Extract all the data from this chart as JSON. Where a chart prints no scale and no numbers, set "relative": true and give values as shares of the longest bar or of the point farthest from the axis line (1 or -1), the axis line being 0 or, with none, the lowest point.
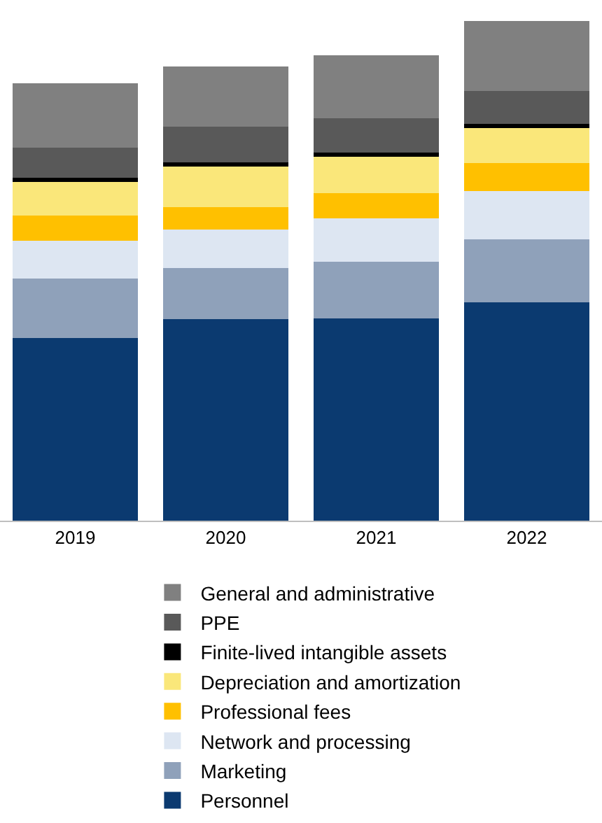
{
  "chart_data": {
    "type": "bar",
    "stacked": true,
    "relative": true,
    "legend": "bottom",
    "categories": [
      "2019",
      "2020",
      "2021",
      "2022"
    ],
    "series": [
      {
        "name": "Personnel",
        "color": "#0b3a70",
        "values": [
          0.366,
          0.403,
          0.405,
          0.437
        ]
      },
      {
        "name": "Marketing",
        "color": "#8fa1ba",
        "values": [
          0.118,
          0.103,
          0.113,
          0.126
        ]
      },
      {
        "name": "Network and processing",
        "color": "#dde6f2",
        "values": [
          0.076,
          0.076,
          0.087,
          0.097
        ]
      },
      {
        "name": "Professional fees",
        "color": "#ffc000",
        "values": [
          0.05,
          0.045,
          0.05,
          0.055
        ]
      },
      {
        "name": "Depreciation and amortization",
        "color": "#fae77a",
        "values": [
          0.068,
          0.082,
          0.074,
          0.071
        ]
      },
      {
        "name": "Finite-lived intangible assets",
        "color": "#000000",
        "values": [
          0.008,
          0.008,
          0.008,
          0.008
        ]
      },
      {
        "name": "PPE",
        "color": "#595959",
        "values": [
          0.061,
          0.071,
          0.068,
          0.066
        ]
      },
      {
        "name": "General and administrative",
        "color": "#808080",
        "values": [
          0.129,
          0.121,
          0.126,
          0.14
        ]
      }
    ]
  }
}
